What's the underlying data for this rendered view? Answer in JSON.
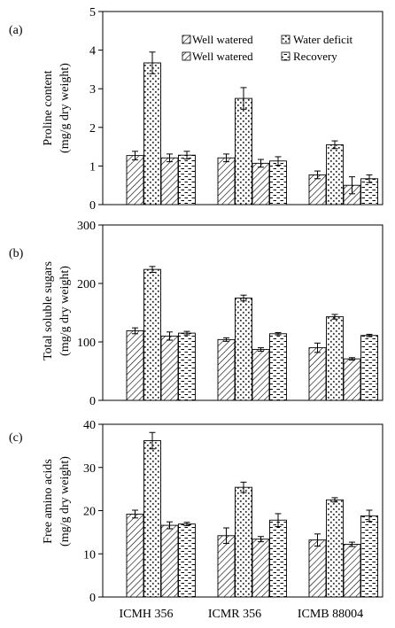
{
  "chart_data": [
    {
      "type": "bar",
      "panel_label": "(a)",
      "ylabel_line1": "Proline content",
      "ylabel_line2": "(mg/g dry weight)",
      "ylim": [
        0,
        5
      ],
      "yticks": [
        0,
        1,
        2,
        3,
        4,
        5
      ],
      "categories": [
        "ICMH 356",
        "ICMR 356",
        "ICMB 88004"
      ],
      "legend_position": "top-right",
      "series": [
        {
          "name": "Well watered",
          "pattern": "diag",
          "values": [
            1.27,
            1.21,
            0.77
          ],
          "errors": [
            0.11,
            0.1,
            0.1
          ]
        },
        {
          "name": "Water deficit",
          "pattern": "dots",
          "values": [
            3.67,
            2.75,
            1.55
          ],
          "errors": [
            0.28,
            0.28,
            0.1
          ]
        },
        {
          "name": "Well watered",
          "pattern": "diag",
          "values": [
            1.21,
            1.07,
            0.5
          ],
          "errors": [
            0.1,
            0.1,
            0.22
          ]
        },
        {
          "name": "Recovery",
          "pattern": "dash",
          "values": [
            1.28,
            1.13,
            0.67
          ],
          "errors": [
            0.1,
            0.11,
            0.1
          ]
        }
      ]
    },
    {
      "type": "bar",
      "panel_label": "(b)",
      "ylabel_line1": "Total soluble sugars",
      "ylabel_line2": "(mg/g dry weight)",
      "ylim": [
        0,
        300
      ],
      "yticks": [
        0,
        100,
        200,
        300
      ],
      "categories": [
        "ICMH 356",
        "ICMR 356",
        "ICMB 88004"
      ],
      "series": [
        {
          "name": "Well watered",
          "pattern": "diag",
          "values": [
            119,
            104,
            90
          ],
          "errors": [
            5,
            3,
            8
          ]
        },
        {
          "name": "Water deficit",
          "pattern": "dots",
          "values": [
            224,
            175,
            143
          ],
          "errors": [
            5,
            5,
            4
          ]
        },
        {
          "name": "Well watered",
          "pattern": "diag",
          "values": [
            110,
            87,
            71
          ],
          "errors": [
            7,
            3,
            2
          ]
        },
        {
          "name": "Recovery",
          "pattern": "dash",
          "values": [
            115,
            114,
            111
          ],
          "errors": [
            3,
            2,
            2
          ]
        }
      ]
    },
    {
      "type": "bar",
      "panel_label": "(c)",
      "ylabel_line1": "Free amino acids",
      "ylabel_line2": "(mg/g dry weight)",
      "ylim": [
        0,
        40
      ],
      "yticks": [
        0,
        10,
        20,
        30,
        40
      ],
      "categories": [
        "ICMH 356",
        "ICMR 356",
        "ICMB 88004"
      ],
      "series": [
        {
          "name": "Well watered",
          "pattern": "diag",
          "values": [
            19.2,
            14.2,
            13.2
          ],
          "errors": [
            0.9,
            1.8,
            1.4
          ]
        },
        {
          "name": "Water deficit",
          "pattern": "dots",
          "values": [
            36.2,
            25.4,
            22.5
          ],
          "errors": [
            1.9,
            1.2,
            0.5
          ]
        },
        {
          "name": "Well watered",
          "pattern": "diag",
          "values": [
            16.6,
            13.4,
            12.2
          ],
          "errors": [
            0.8,
            0.6,
            0.5
          ]
        },
        {
          "name": "Recovery",
          "pattern": "dash",
          "values": [
            16.9,
            17.8,
            18.8
          ],
          "errors": [
            0.4,
            1.5,
            1.3
          ]
        }
      ]
    }
  ]
}
